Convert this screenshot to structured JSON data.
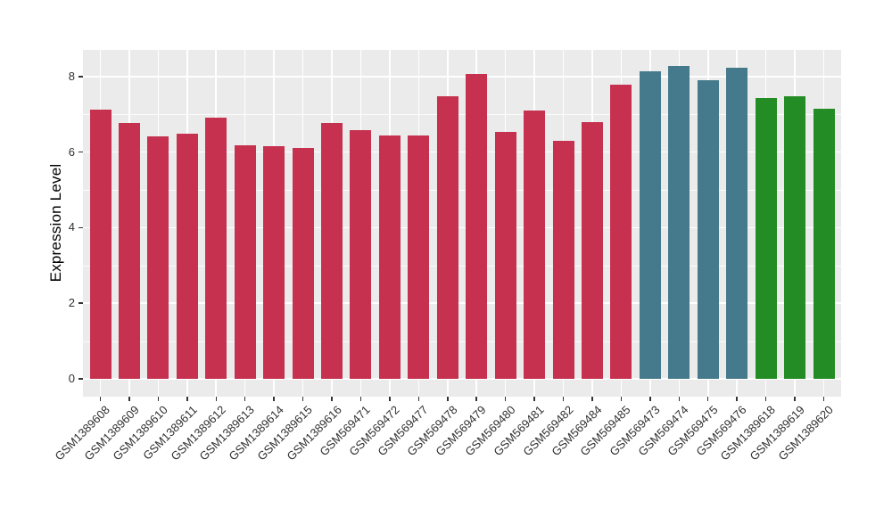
{
  "chart_data": {
    "type": "bar",
    "title": "",
    "ylabel": "Expression Level",
    "xlabel": "",
    "categories": [
      "GSM1389608",
      "GSM1389609",
      "GSM1389610",
      "GSM1389611",
      "GSM1389612",
      "GSM1389613",
      "GSM1389614",
      "GSM1389615",
      "GSM1389616",
      "GSM569471",
      "GSM569472",
      "GSM569477",
      "GSM569478",
      "GSM569479",
      "GSM569480",
      "GSM569481",
      "GSM569482",
      "GSM569484",
      "GSM569485",
      "GSM569473",
      "GSM569474",
      "GSM569475",
      "GSM569476",
      "GSM1389618",
      "GSM1389619",
      "GSM1389620"
    ],
    "values": [
      7.12,
      6.76,
      6.41,
      6.49,
      6.91,
      6.17,
      6.15,
      6.12,
      6.76,
      6.58,
      6.45,
      6.45,
      7.47,
      8.07,
      6.54,
      7.1,
      6.3,
      6.8,
      7.78,
      8.13,
      8.27,
      7.89,
      8.24,
      7.44,
      7.48,
      7.15
    ],
    "groups": [
      {
        "color": "#C5314E",
        "start_index": 0,
        "count": 19
      },
      {
        "color": "#447A8B",
        "start_index": 19,
        "count": 4
      },
      {
        "color": "#248C24",
        "start_index": 23,
        "count": 3
      }
    ],
    "yticks": [
      0,
      2,
      4,
      6,
      8
    ],
    "minor_yticks": [
      1,
      3,
      5,
      7
    ],
    "ylim": [
      0,
      8.68
    ],
    "legend": false,
    "grid": true,
    "panel_background": "#EBEBEB",
    "gridline_color": "#FFFFFF",
    "tick_color": "#333333"
  }
}
